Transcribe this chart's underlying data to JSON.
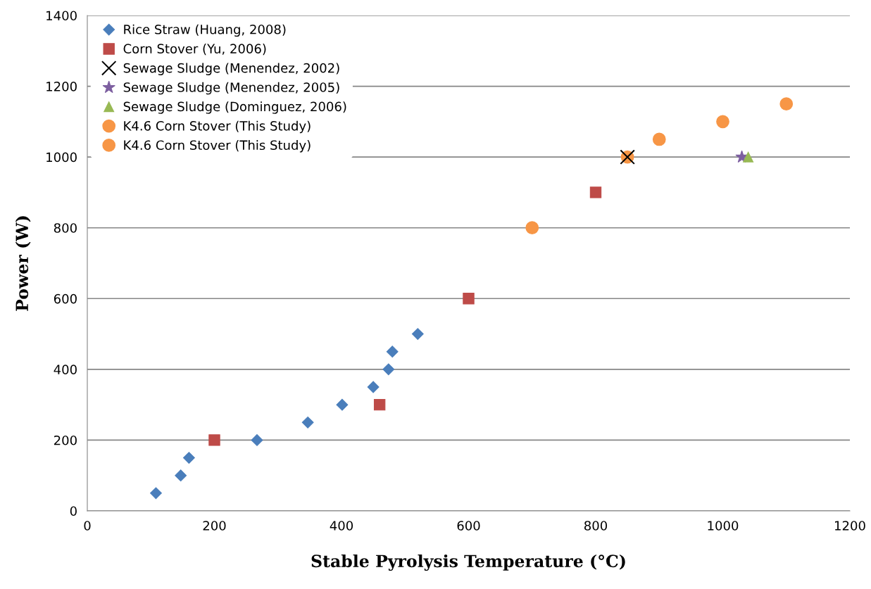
{
  "chart_data": {
    "type": "scatter",
    "xlabel": "Stable Pyrolysis Temperature (°C)",
    "ylabel": "Power (W)",
    "xlim": [
      0,
      1200
    ],
    "xticks": [
      0,
      200,
      400,
      600,
      800,
      1000,
      1200
    ],
    "ylim": [
      0,
      1400
    ],
    "yticks": [
      0,
      200,
      400,
      600,
      800,
      1000,
      1200,
      1400
    ],
    "grid": "y",
    "legend": "top left",
    "series": [
      {
        "name": "Rice Straw (Huang, 2008)",
        "color": "#4a7ebb",
        "marker": "diamond",
        "x": [
          108,
          147,
          160,
          267,
          347,
          401,
          450,
          474,
          480,
          520
        ],
        "values": [
          50,
          100,
          150,
          200,
          250,
          300,
          350,
          400,
          450,
          500
        ]
      },
      {
        "name": "Corn Stover (Yu, 2006)",
        "color": "#be4b48",
        "marker": "square",
        "x": [
          200,
          460,
          600,
          800
        ],
        "values": [
          200,
          300,
          600,
          900
        ]
      },
      {
        "name": "Sewage Sludge (Menendez, 2002)",
        "color": "#000000",
        "marker": "cross",
        "x": [
          850
        ],
        "values": [
          1000
        ]
      },
      {
        "name": "Sewage Sludge (Menendez, 2005)",
        "color": "#7d5fa0",
        "marker": "star",
        "x": [
          1030
        ],
        "values": [
          1000
        ]
      },
      {
        "name": "Sewage Sludge (Dominguez, 2006)",
        "color": "#98b954",
        "marker": "triangle",
        "x": [
          1040
        ],
        "values": [
          1000
        ]
      },
      {
        "name": "K4.6 Corn Stover (This Study)",
        "color": "#f79646",
        "marker": "circle",
        "x": [
          850
        ],
        "values": [
          1000
        ]
      },
      {
        "name": "K4.6 Corn Stover (This Study)",
        "color": "#f79646",
        "marker": "circle",
        "x": [
          700,
          900,
          1000,
          1100
        ],
        "values": [
          800,
          1050,
          1100,
          1150
        ]
      }
    ]
  }
}
